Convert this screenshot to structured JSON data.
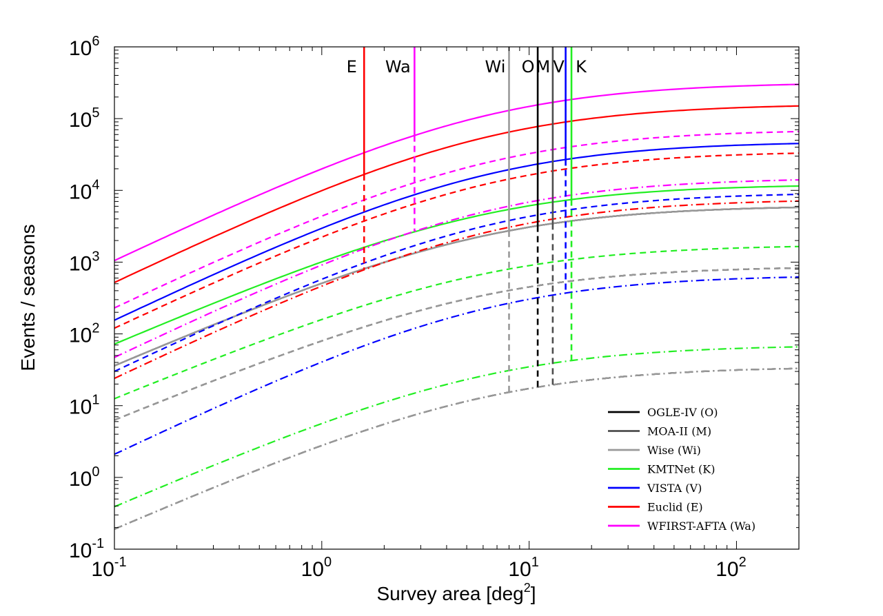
{
  "chart_data": {
    "type": "line",
    "title": "",
    "xlabel": "Survey area  [deg",
    "xlabel_sup": "2",
    "xlabel_end": "]",
    "ylabel": "Events / seasons",
    "xscale": "log",
    "yscale": "log",
    "xlim": [
      0.1,
      200
    ],
    "ylim": [
      0.1,
      1000000
    ],
    "x_tick_labels": [
      {
        "base": "10",
        "exp": "-1"
      },
      {
        "base": "10",
        "exp": "0"
      },
      {
        "base": "10",
        "exp": "1"
      },
      {
        "base": "10",
        "exp": "2"
      }
    ],
    "y_tick_labels": [
      {
        "base": "10",
        "exp": "-1"
      },
      {
        "base": "10",
        "exp": "0"
      },
      {
        "base": "10",
        "exp": "1"
      },
      {
        "base": "10",
        "exp": "2"
      },
      {
        "base": "10",
        "exp": "3"
      },
      {
        "base": "10",
        "exp": "4"
      },
      {
        "base": "10",
        "exp": "5"
      },
      {
        "base": "10",
        "exp": "6"
      }
    ],
    "line_styles": {
      "solid": "solid",
      "dashed": "dashed",
      "dashdot": "dash-dot"
    },
    "surveys": [
      {
        "name": "OGLE-IV",
        "abbr": "O",
        "color": "#000000",
        "area": 11,
        "curves": {
          "solid": [
            36,
            5800
          ],
          "dashed": [
            6.3,
            830
          ],
          "dashdot": [
            0.19,
            33
          ]
        }
      },
      {
        "name": "MOA-II",
        "abbr": "M",
        "color": "#4d4d4d",
        "area": 13,
        "curves": {
          "solid": [
            36,
            5800
          ],
          "dashed": [
            6.3,
            830
          ],
          "dashdot": [
            0.19,
            33
          ]
        }
      },
      {
        "name": "Wise",
        "abbr": "Wi",
        "color": "#999999",
        "area": 8,
        "curves": {
          "solid": [
            36,
            5800
          ],
          "dashed": [
            6.3,
            830
          ],
          "dashdot": [
            0.19,
            33
          ]
        }
      },
      {
        "name": "KMTNet",
        "abbr": "K",
        "color": "#22ee22",
        "area": 16,
        "curves": {
          "solid": [
            72,
            11500
          ],
          "dashed": [
            12.5,
            1650
          ],
          "dashdot": [
            0.39,
            66
          ]
        }
      },
      {
        "name": "VISTA",
        "abbr": "V",
        "color": "#0000ff",
        "area": 15,
        "curves": {
          "solid": [
            155,
            45000
          ],
          "dashed": [
            30,
            8800
          ],
          "dashdot": [
            2.1,
            620
          ]
        }
      },
      {
        "name": "Euclid",
        "abbr": "E",
        "color": "#ff0000",
        "area": 1.6,
        "curves": {
          "solid": [
            520,
            150000
          ],
          "dashed": [
            120,
            33000
          ],
          "dashdot": [
            24,
            7100
          ]
        }
      },
      {
        "name": "WFIRST-AFTA",
        "abbr": "Wa",
        "color": "#ff00ff",
        "area": 2.8,
        "curves": {
          "solid": [
            1050,
            300000
          ],
          "dashed": [
            230,
            66000
          ],
          "dashdot": [
            47,
            14000
          ]
        }
      }
    ],
    "vline_labels": [
      "E",
      "Wa",
      "Wi",
      "O",
      "M",
      "V",
      "K"
    ],
    "legend": [
      {
        "label": "OGLE-IV  (O)",
        "color": "#000000"
      },
      {
        "label": "MOA-II  (M)",
        "color": "#4d4d4d"
      },
      {
        "label": "Wise (Wi)",
        "color": "#999999"
      },
      {
        "label": "KMTNet  (K)",
        "color": "#22ee22"
      },
      {
        "label": "VISTA  (V)",
        "color": "#0000ff"
      },
      {
        "label": "Euclid  (E)",
        "color": "#ff0000"
      },
      {
        "label": "WFIRST-AFTA  (Wa)",
        "color": "#ff00ff"
      }
    ],
    "legend_position": "bottom-right",
    "grid": false
  }
}
